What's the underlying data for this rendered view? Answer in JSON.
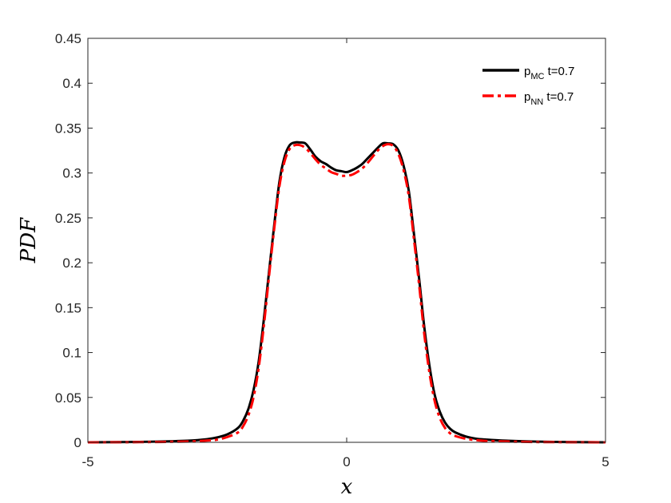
{
  "chart_data": {
    "type": "line",
    "xlabel": "x",
    "ylabel": "PDF",
    "xlim": [
      -5,
      5
    ],
    "ylim": [
      0,
      0.45
    ],
    "x_ticks": [
      -5,
      0,
      5
    ],
    "x_tick_labels": [
      "-5",
      "0",
      "5"
    ],
    "y_ticks": [
      0,
      0.05,
      0.1,
      0.15,
      0.2,
      0.25,
      0.3,
      0.35,
      0.4,
      0.45
    ],
    "y_tick_labels": [
      "0",
      "0.05",
      "0.1",
      "0.15",
      "0.2",
      "0.25",
      "0.3",
      "0.35",
      "0.4",
      "0.45"
    ],
    "grid": false,
    "legend_position": "top-right",
    "series": [
      {
        "name": "p_MC t=0.7",
        "legend": {
          "main": "p",
          "sub": "MC",
          "rest": " t=0.7"
        },
        "color": "#000000",
        "style": "solid",
        "x": [
          -5,
          -4,
          -3.5,
          -3,
          -2.7,
          -2.5,
          -2.3,
          -2.1,
          -2.0,
          -1.9,
          -1.8,
          -1.7,
          -1.6,
          -1.5,
          -1.4,
          -1.3,
          -1.2,
          -1.1,
          -1.0,
          -0.9,
          -0.8,
          -0.7,
          -0.6,
          -0.5,
          -0.4,
          -0.3,
          -0.2,
          -0.1,
          0,
          0.1,
          0.2,
          0.3,
          0.4,
          0.5,
          0.6,
          0.7,
          0.8,
          0.9,
          1.0,
          1.1,
          1.2,
          1.3,
          1.4,
          1.5,
          1.6,
          1.7,
          1.8,
          1.9,
          2.0,
          2.1,
          2.3,
          2.5,
          2.7,
          3.0,
          3.5,
          4.0,
          5.0
        ],
        "y": [
          0,
          0.0005,
          0.001,
          0.002,
          0.0035,
          0.0055,
          0.009,
          0.016,
          0.024,
          0.037,
          0.058,
          0.09,
          0.137,
          0.19,
          0.242,
          0.29,
          0.318,
          0.331,
          0.334,
          0.334,
          0.333,
          0.326,
          0.318,
          0.313,
          0.31,
          0.306,
          0.303,
          0.302,
          0.301,
          0.303,
          0.306,
          0.31,
          0.316,
          0.322,
          0.328,
          0.333,
          0.333,
          0.332,
          0.325,
          0.308,
          0.28,
          0.232,
          0.182,
          0.128,
          0.085,
          0.053,
          0.034,
          0.022,
          0.015,
          0.011,
          0.0065,
          0.004,
          0.003,
          0.002,
          0.001,
          0.0005,
          0
        ]
      },
      {
        "name": "p_NN t=0.7",
        "legend": {
          "main": "p",
          "sub": "NN",
          "rest": " t=0.7"
        },
        "color": "#ff0000",
        "style": "dashdot",
        "x": [
          -5,
          -4,
          -3.5,
          -3,
          -2.7,
          -2.5,
          -2.3,
          -2.1,
          -2.0,
          -1.9,
          -1.8,
          -1.7,
          -1.6,
          -1.5,
          -1.4,
          -1.3,
          -1.2,
          -1.1,
          -1.0,
          -0.9,
          -0.8,
          -0.7,
          -0.6,
          -0.5,
          -0.4,
          -0.3,
          -0.2,
          -0.1,
          0,
          0.1,
          0.2,
          0.3,
          0.4,
          0.5,
          0.6,
          0.7,
          0.8,
          0.9,
          1.0,
          1.1,
          1.2,
          1.3,
          1.4,
          1.5,
          1.6,
          1.7,
          1.8,
          1.9,
          2.0,
          2.1,
          2.3,
          2.5,
          2.7,
          3.0,
          3.5,
          4.0,
          5.0
        ],
        "y": [
          0,
          0.0002,
          0.0005,
          0.001,
          0.002,
          0.003,
          0.006,
          0.011,
          0.018,
          0.03,
          0.05,
          0.083,
          0.13,
          0.185,
          0.238,
          0.285,
          0.313,
          0.327,
          0.331,
          0.331,
          0.328,
          0.322,
          0.315,
          0.309,
          0.305,
          0.301,
          0.299,
          0.297,
          0.297,
          0.298,
          0.301,
          0.305,
          0.311,
          0.318,
          0.325,
          0.33,
          0.332,
          0.33,
          0.321,
          0.303,
          0.274,
          0.226,
          0.175,
          0.12,
          0.077,
          0.046,
          0.027,
          0.016,
          0.01,
          0.007,
          0.004,
          0.0025,
          0.0015,
          0.001,
          0.0004,
          0.0002,
          0
        ]
      }
    ]
  }
}
